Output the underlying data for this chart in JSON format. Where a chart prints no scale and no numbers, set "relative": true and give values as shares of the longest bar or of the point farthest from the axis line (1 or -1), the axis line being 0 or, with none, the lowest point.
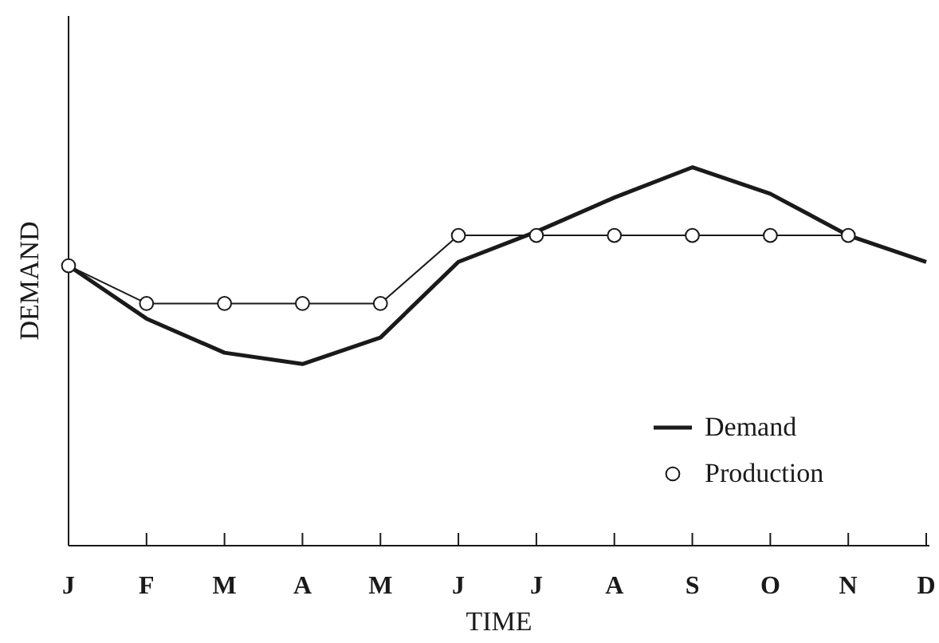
{
  "chart_data": {
    "type": "line",
    "xlabel": "TIME",
    "ylabel": "DEMAND",
    "relative": true,
    "legend": "bottom right",
    "categories": [
      "J",
      "F",
      "M",
      "A",
      "M",
      "J",
      "J",
      "A",
      "S",
      "O",
      "N",
      "D"
    ],
    "series": [
      {
        "name": "Demand",
        "color": "#1a1a1a",
        "marker": "none",
        "values": [
          0.74,
          0.6,
          0.51,
          0.48,
          0.55,
          0.75,
          0.83,
          0.92,
          1,
          0.93,
          0.82,
          0.75
        ]
      },
      {
        "name": "Production",
        "color": "#1a1a1a",
        "marker": "circle",
        "values": [
          0.74,
          0.64,
          0.64,
          0.64,
          0.64,
          0.82,
          0.82,
          0.82,
          0.82,
          0.82,
          0.82,
          null
        ]
      }
    ]
  }
}
